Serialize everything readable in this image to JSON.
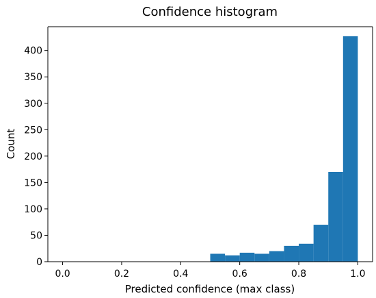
{
  "chart_data": {
    "type": "bar",
    "title": "Confidence histogram",
    "xlabel": "Predicted confidence (max class)",
    "ylabel": "Count",
    "xlim": [
      -0.05,
      1.05
    ],
    "ylim": [
      0,
      445
    ],
    "x_ticks": [
      0.0,
      0.2,
      0.4,
      0.6,
      0.8,
      1.0
    ],
    "x_tick_labels": [
      "0.0",
      "0.2",
      "0.4",
      "0.6",
      "0.8",
      "1.0"
    ],
    "y_ticks": [
      0,
      50,
      100,
      150,
      200,
      250,
      300,
      350,
      400
    ],
    "y_tick_labels": [
      "0",
      "50",
      "100",
      "150",
      "200",
      "250",
      "300",
      "350",
      "400"
    ],
    "bins": [
      {
        "x0": 0.5,
        "x1": 0.55,
        "count": 15
      },
      {
        "x0": 0.55,
        "x1": 0.6,
        "count": 12
      },
      {
        "x0": 0.6,
        "x1": 0.65,
        "count": 17
      },
      {
        "x0": 0.65,
        "x1": 0.7,
        "count": 15
      },
      {
        "x0": 0.7,
        "x1": 0.75,
        "count": 20
      },
      {
        "x0": 0.75,
        "x1": 0.8,
        "count": 30
      },
      {
        "x0": 0.8,
        "x1": 0.85,
        "count": 34
      },
      {
        "x0": 0.85,
        "x1": 0.9,
        "count": 70
      },
      {
        "x0": 0.9,
        "x1": 0.95,
        "count": 170
      },
      {
        "x0": 0.95,
        "x1": 1.0,
        "count": 427
      }
    ],
    "grid": false,
    "bar_color": "#1f77b4"
  }
}
